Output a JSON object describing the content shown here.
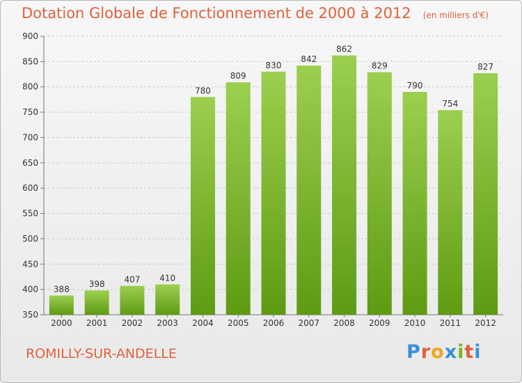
{
  "header": {
    "title": "Dotation Globale de Fonctionnement de 2000 à 2012",
    "unit": "(en milliers d'€)"
  },
  "footer": {
    "commune": "ROMILLY-SUR-ANDELLE",
    "logo_text": "Proxiti"
  },
  "colors": {
    "title": "#e0613d",
    "bar_top": "#9ccf4f",
    "bar_bottom": "#5e9b12",
    "logo": [
      "#3a8fd6",
      "#e0613d",
      "#f2a31b",
      "#3a8fd6",
      "#7ab51d",
      "#e0613d",
      "#3a8fd6"
    ]
  },
  "chart_data": {
    "type": "bar",
    "categories": [
      "2000",
      "2001",
      "2002",
      "2003",
      "2004",
      "2005",
      "2006",
      "2007",
      "2008",
      "2009",
      "2010",
      "2011",
      "2012"
    ],
    "values": [
      388,
      398,
      407,
      410,
      780,
      809,
      830,
      842,
      862,
      829,
      790,
      754,
      827
    ],
    "ylim": [
      350,
      900
    ],
    "yticks": [
      350,
      400,
      450,
      500,
      550,
      600,
      650,
      700,
      750,
      800,
      850,
      900
    ],
    "grid": "horizontal dashed",
    "data_labels": true
  }
}
